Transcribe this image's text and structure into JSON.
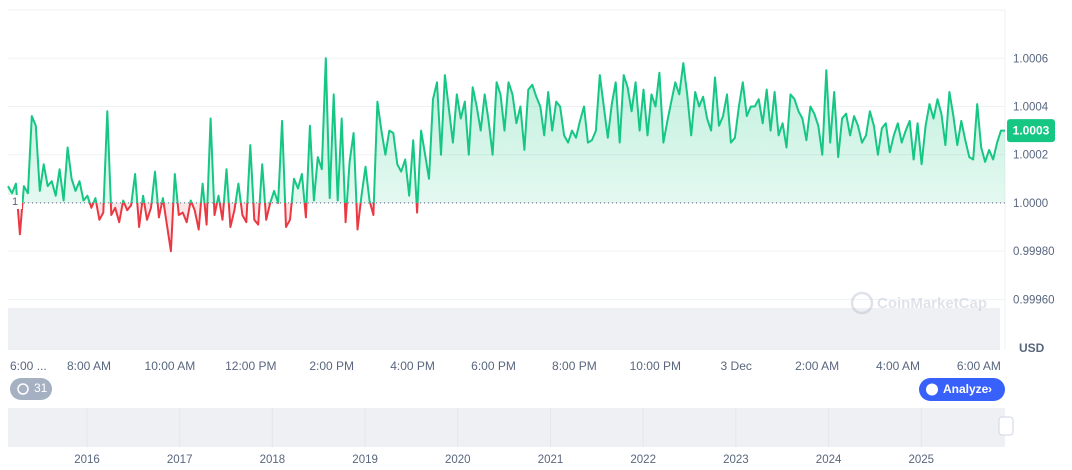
{
  "chart_data": {
    "type": "line",
    "series": [
      {
        "color": "#16c784",
        "negative_color": "#ea3943",
        "values": [
          1.00007,
          1.00004,
          1.00008,
          0.99987,
          1.00007,
          1.00004,
          1.00036,
          1.00032,
          1.00005,
          1.00016,
          1.00007,
          1.00009,
          1.00003,
          1.00014,
          1.00001,
          1.00023,
          1.0001,
          1.00005,
          1.00009,
          1.00001,
          1.00003,
          0.99998,
          1.00002,
          0.99993,
          0.99996,
          1.00038,
          0.99995,
          0.99998,
          0.99992,
          1.00001,
          0.99997,
          0.99999,
          1.00012,
          0.9999,
          1.00003,
          0.99993,
          0.99998,
          1.00013,
          0.99994,
          1.00002,
          0.99991,
          0.9998,
          1.00012,
          0.99995,
          0.99996,
          0.99992,
          1.00001,
          0.99997,
          0.99989,
          1.00008,
          0.99991,
          1.00035,
          0.99995,
          1.00003,
          0.99993,
          1.00014,
          0.9999,
          0.99997,
          1.00008,
          0.99995,
          0.99992,
          1.00024,
          0.99993,
          0.99991,
          1.00016,
          0.99993,
          1.0,
          1.00005,
          1.0,
          1.00034,
          0.9999,
          0.99993,
          1.0001,
          1.00006,
          1.00012,
          0.99994,
          1.00032,
          1.00001,
          1.00019,
          1.00014,
          1.0006,
          1.00002,
          1.00045,
          1.00001,
          1.00035,
          0.99992,
          1.00017,
          1.00029,
          0.99989,
          1.00003,
          1.00015,
          1.00001,
          0.99995,
          1.00042,
          1.0003,
          1.0002,
          1.0003,
          1.00029,
          1.00016,
          1.00013,
          1.00018,
          1.00003,
          1.00026,
          0.99996,
          1.0003,
          1.0002,
          1.0001,
          1.00043,
          1.0005,
          1.0002,
          1.00053,
          1.00039,
          1.00025,
          1.00045,
          1.00035,
          1.00042,
          1.0002,
          1.00048,
          1.0004,
          1.0003,
          1.00045,
          1.00034,
          1.0002,
          1.0005,
          1.00045,
          1.0003,
          1.0005,
          1.00045,
          1.00033,
          1.0004,
          1.00022,
          1.00047,
          1.00049,
          1.00044,
          1.0004,
          1.00028,
          1.00046,
          1.0003,
          1.00042,
          1.0004,
          1.00028,
          1.00025,
          1.0003,
          1.00027,
          1.00034,
          1.0004,
          1.00025,
          1.00026,
          1.0003,
          1.00053,
          1.0004,
          1.00027,
          1.00041,
          1.0005,
          1.00025,
          1.00053,
          1.00048,
          1.00038,
          1.0005,
          1.0003,
          1.00047,
          1.00028,
          1.00045,
          1.0004,
          1.00054,
          1.00025,
          1.00034,
          1.00042,
          1.0005,
          1.00045,
          1.00058,
          1.00045,
          1.00028,
          1.00046,
          1.0004,
          1.00044,
          1.00035,
          1.0003,
          1.00052,
          1.00032,
          1.00036,
          1.00045,
          1.00025,
          1.00027,
          1.0004,
          1.0005,
          1.00036,
          1.0004,
          1.0004,
          1.00043,
          1.00033,
          1.00047,
          1.0003,
          1.00046,
          1.00028,
          1.00033,
          1.00023,
          1.00045,
          1.00043,
          1.00038,
          1.00035,
          1.00026,
          1.0004,
          1.00037,
          1.00032,
          1.0002,
          1.00055,
          1.00025,
          1.00046,
          1.00019,
          1.00035,
          1.00037,
          1.00028,
          1.00036,
          1.00032,
          1.00025,
          1.00028,
          1.00038,
          1.00032,
          1.0002,
          1.00031,
          1.00033,
          1.00021,
          1.00028,
          1.00033,
          1.00025,
          1.0003,
          1.00034,
          1.00018,
          1.00033,
          1.00016,
          1.00032,
          1.00041,
          1.00035,
          1.00043,
          1.00037,
          1.00024,
          1.00046,
          1.00036,
          1.00024,
          1.00034,
          1.00026,
          1.00019,
          1.00018,
          1.00041,
          1.00023,
          1.00017,
          1.00022,
          1.00018,
          1.00025,
          1.0003,
          1.0003
        ]
      }
    ],
    "baseline": {
      "value": 1,
      "label": "1"
    },
    "current_price_label": "1.0003",
    "ylim": [
      0.9996,
      1.0008
    ],
    "yticks": [
      {
        "value": 0.9996,
        "label": "0.99960"
      },
      {
        "value": 0.9998,
        "label": "0.99980"
      },
      {
        "value": 1.0,
        "label": "1.0000"
      },
      1.0002,
      1.0004,
      1.0006
    ],
    "y_unit": "USD",
    "x_tick_labels": [
      "6:00 ...",
      "8:00 AM",
      "10:00 AM",
      "12:00 PM",
      "2:00 PM",
      "4:00 PM",
      "6:00 PM",
      "8:00 PM",
      "10:00 PM",
      "3 Dec",
      "2:00 AM",
      "4:00 AM",
      "6:00 AM"
    ],
    "grid": true,
    "navigator_years": [
      "2016",
      "2017",
      "2018",
      "2019",
      "2020",
      "2021",
      "2022",
      "2023",
      "2024",
      "2025"
    ],
    "history_badge": "31",
    "analyze_button": "Analyze",
    "watermark": "CoinMarketCap"
  }
}
